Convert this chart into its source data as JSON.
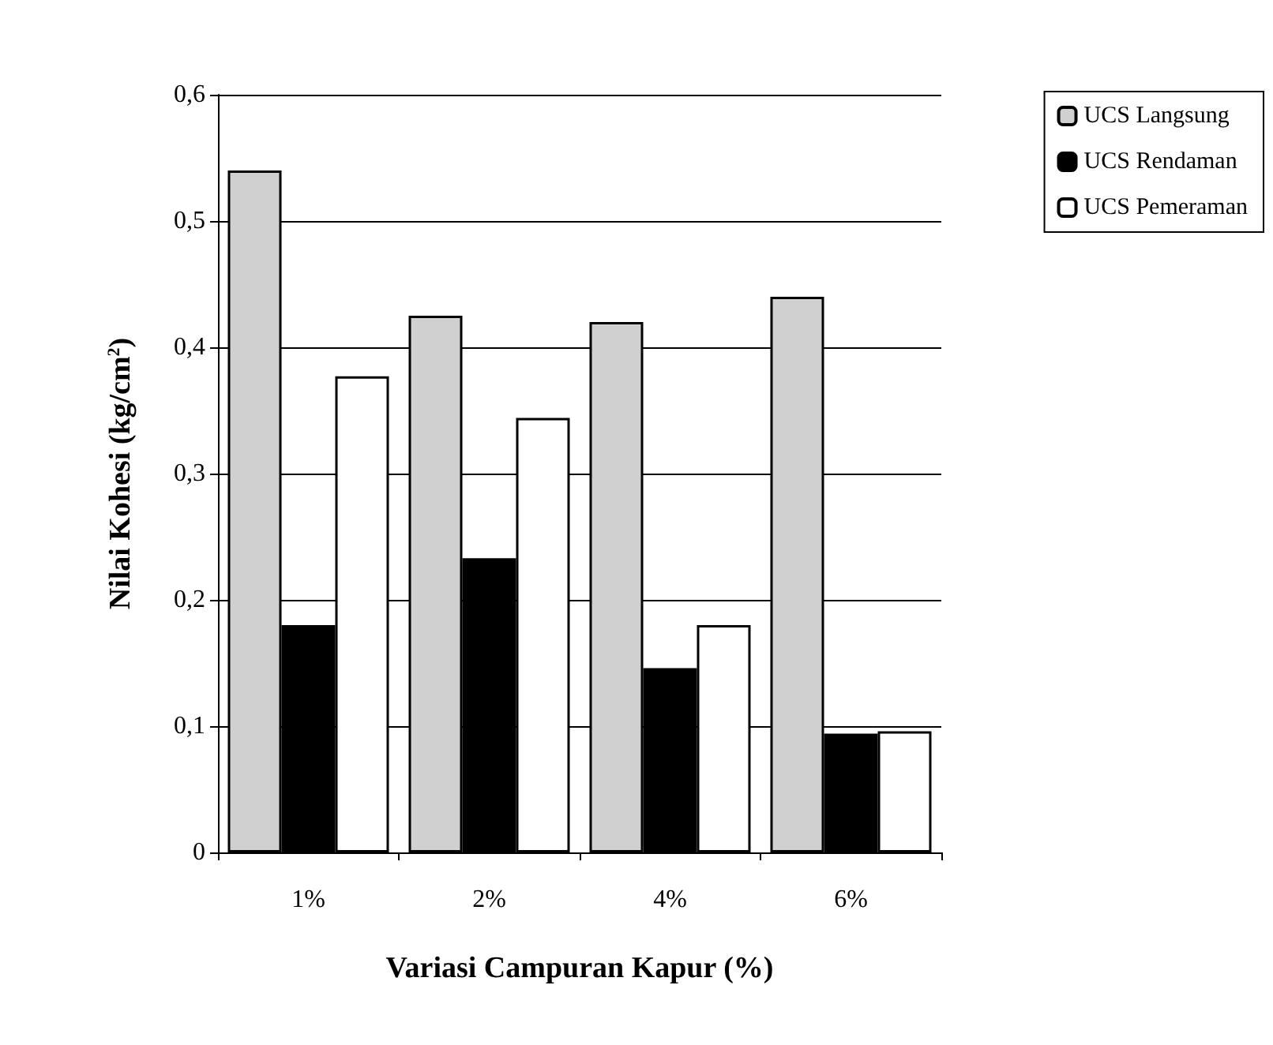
{
  "chart_data": {
    "type": "bar",
    "xlabel": "Variasi Campuran Kapur (%)",
    "ylabel": "Nilai Kohesi (kg/cm$^{2}$)",
    "categories": [
      "1%",
      "2%",
      "4%",
      "6%"
    ],
    "series": [
      {
        "name": "UCS Langsung",
        "color": "#d0d0d0",
        "values": [
          0.54,
          0.425,
          0.42,
          0.44
        ]
      },
      {
        "name": "UCS Rendaman",
        "color": "#000000",
        "values": [
          0.18,
          0.233,
          0.146,
          0.094
        ]
      },
      {
        "name": "UCS Pemeraman",
        "color": "#ffffff",
        "values": [
          0.377,
          0.344,
          0.18,
          0.096
        ]
      }
    ],
    "ylim": [
      0,
      0.6
    ],
    "yticks": [
      0,
      {
        "value": 0.1,
        "label": "0,1"
      },
      {
        "value": 0.2,
        "label": "0,2"
      },
      {
        "value": 0.3,
        "label": "0,3"
      },
      {
        "value": 0.4,
        "label": "0,4"
      },
      {
        "value": 0.5,
        "label": "0,5"
      },
      {
        "value": 0.6,
        "label": "0,6"
      }
    ],
    "grid": "y",
    "legend": "top right"
  }
}
